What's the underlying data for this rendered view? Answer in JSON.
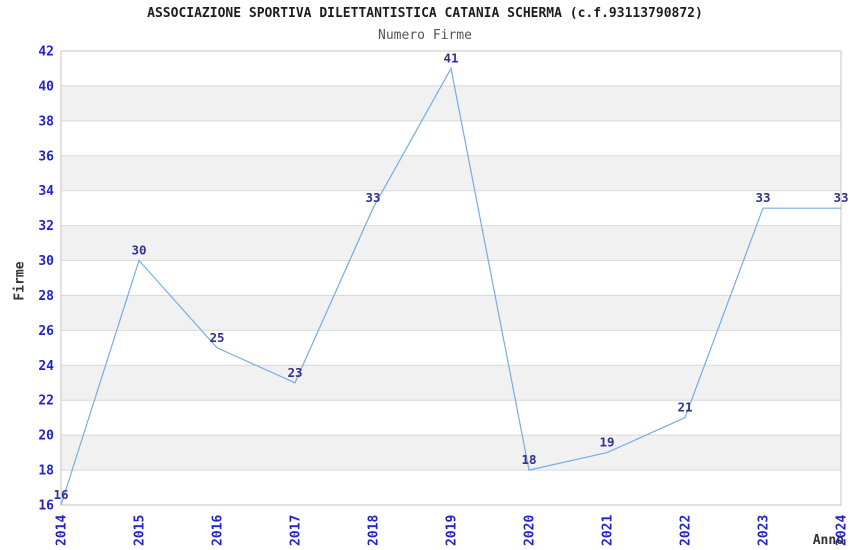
{
  "chart_data": {
    "type": "line",
    "title": "ASSOCIAZIONE SPORTIVA DILETTANTISTICA CATANIA SCHERMA (c.f.93113790872)",
    "subtitle": "Numero Firme",
    "xlabel": "Anno",
    "ylabel": "Firme",
    "x": [
      "2014",
      "2015",
      "2016",
      "2017",
      "2018",
      "2019",
      "2020",
      "2021",
      "2022",
      "2023",
      "2024"
    ],
    "series": [
      {
        "name": "Numero Firme",
        "values": [
          16,
          30,
          25,
          23,
          33,
          41,
          18,
          19,
          21,
          33,
          33
        ]
      }
    ],
    "ylim": [
      16,
      42
    ],
    "yticks": [
      16,
      18,
      20,
      22,
      24,
      26,
      28,
      30,
      32,
      34,
      36,
      38,
      40,
      42
    ],
    "data_labels": true,
    "legend_position": "none",
    "grid": "horizontal alternating bands",
    "x_tick_rotation": -90,
    "colors": {
      "line": "#75ade4",
      "tick_label": "#2323cd",
      "data_label": "#32328c",
      "band_fill": "#f1f1f1",
      "band_alt_fill": "#ffffff",
      "grid_line": "#d9d9d9",
      "plot_border": "#c5c5c5",
      "title_text": "#1d1d1d",
      "subtitle_text": "#555555",
      "axis_title_text": "#333333",
      "background": "#ffffff"
    }
  }
}
